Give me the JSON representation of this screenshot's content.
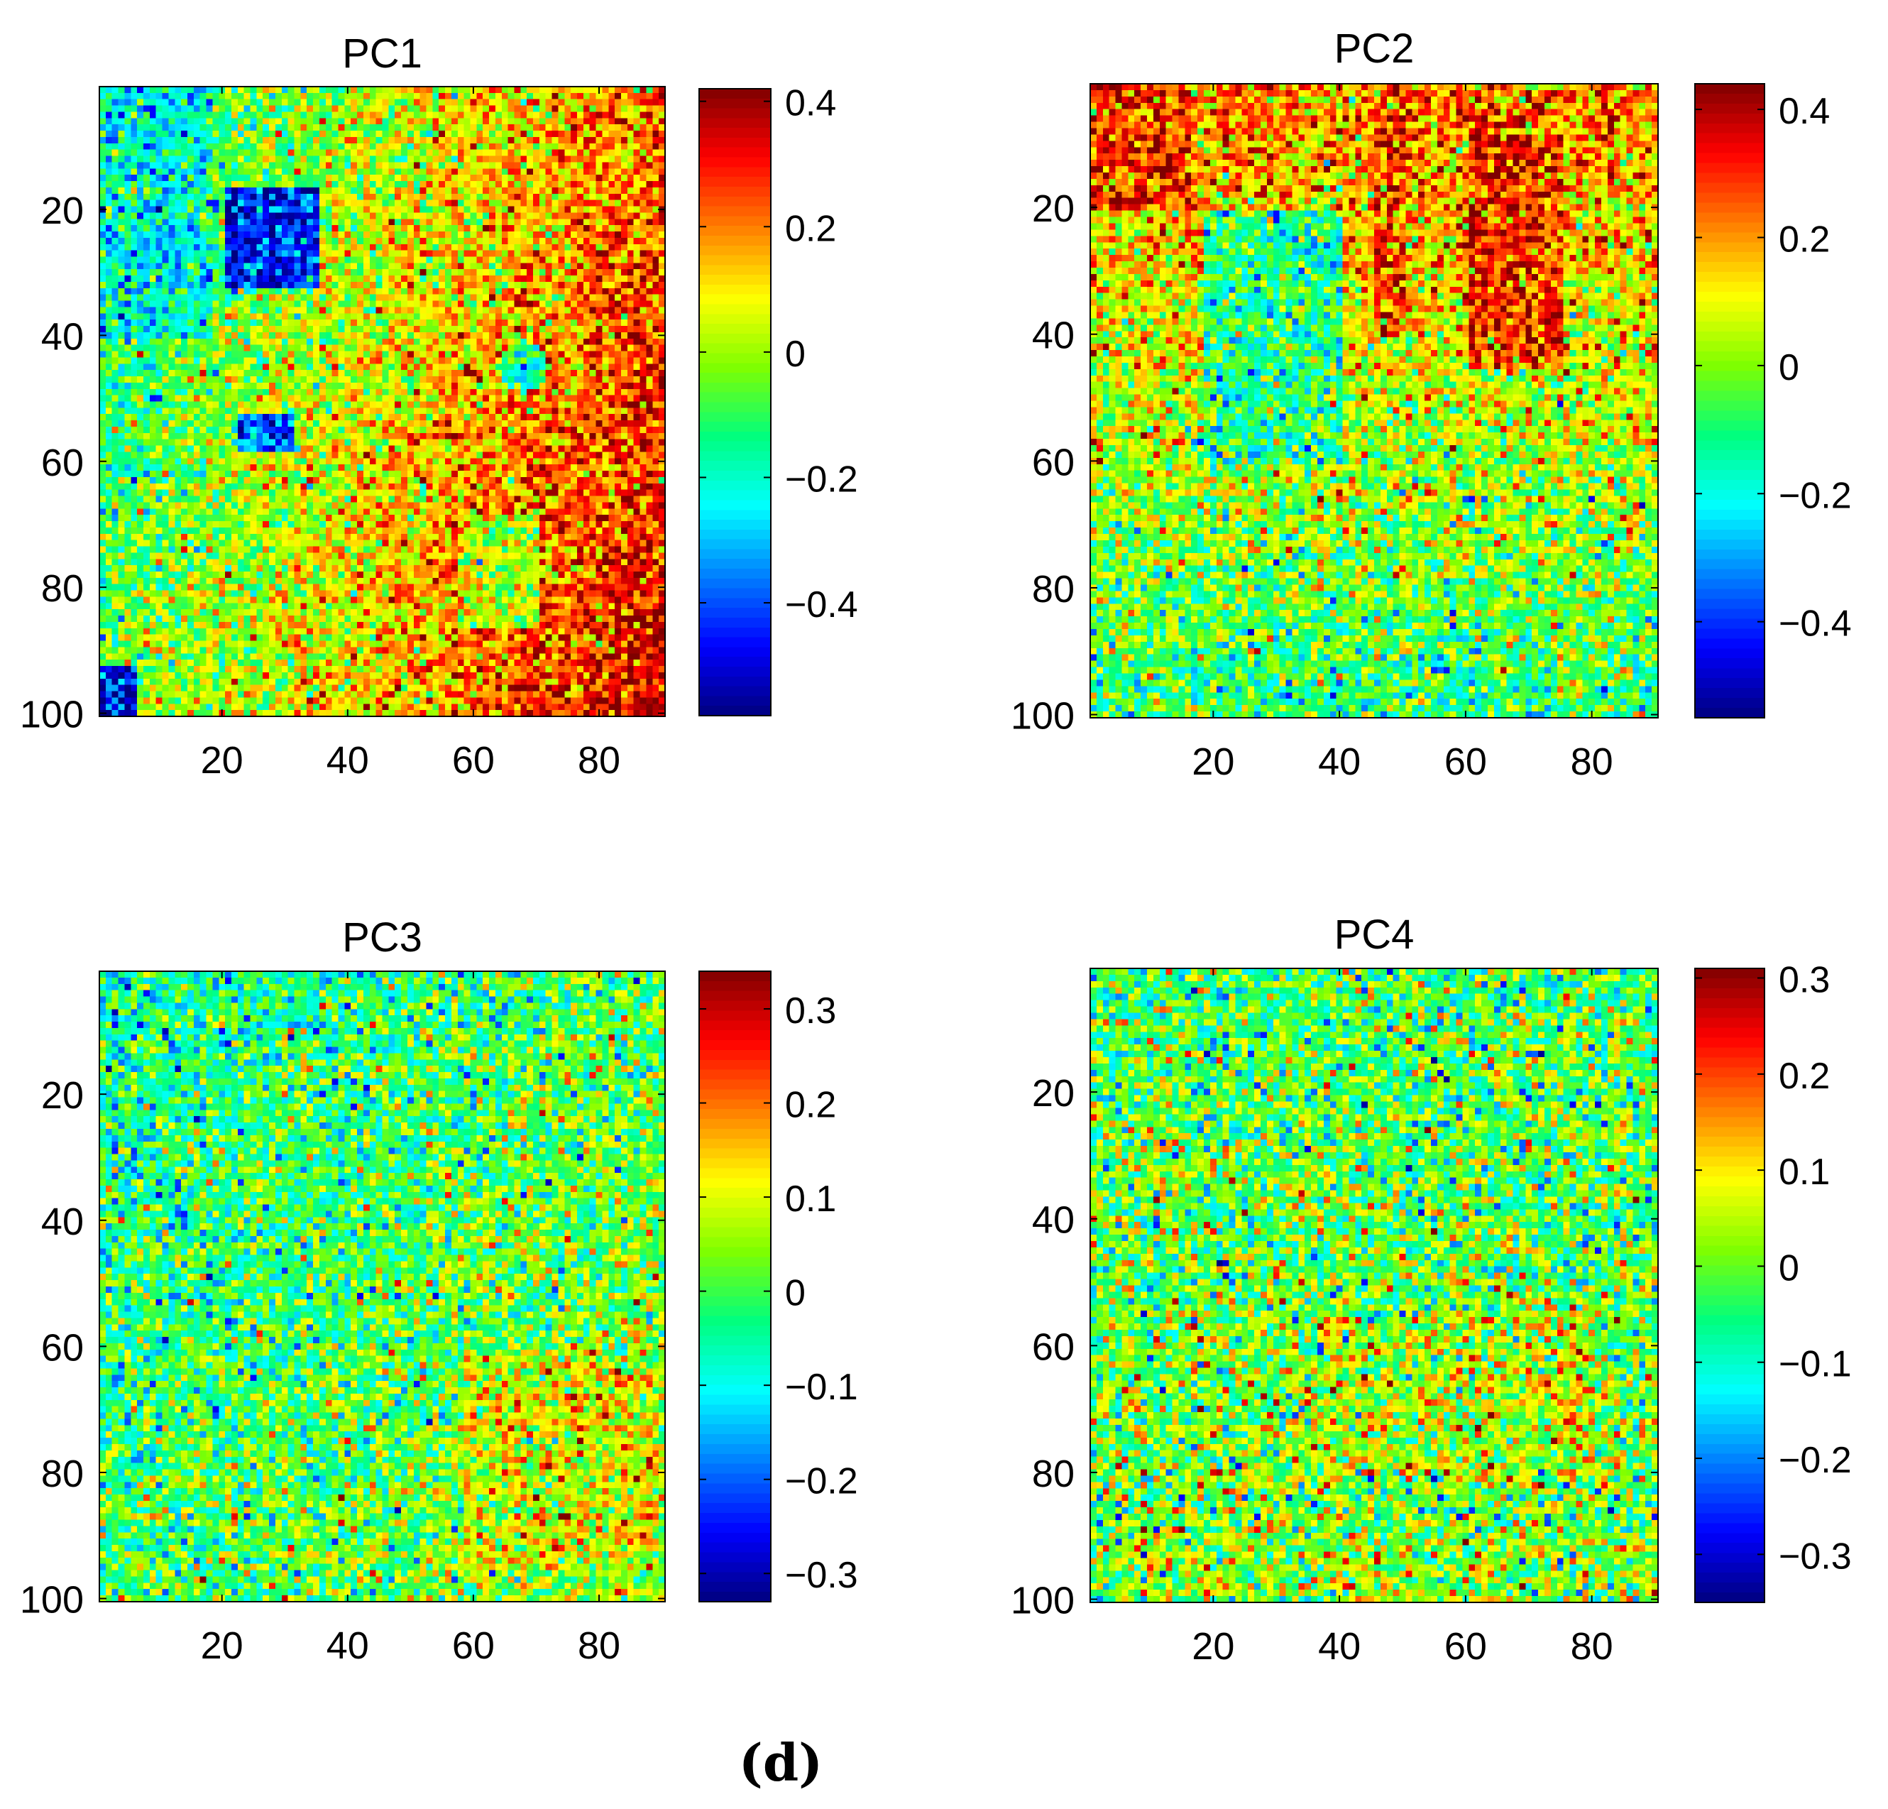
{
  "figure": {
    "caption": "(d)"
  },
  "colors": {
    "jet": [
      "#00007f",
      "#0000ff",
      "#007fff",
      "#00ffff",
      "#00ff7f",
      "#7fff00",
      "#ffff00",
      "#ff7f00",
      "#ff0000",
      "#7f0000"
    ],
    "axis": "#000000",
    "background": "#ffffff"
  },
  "chart_data": [
    {
      "type": "heatmap",
      "title": "PC1",
      "rows": 100,
      "cols": 90,
      "xlim": [
        0.5,
        90.5
      ],
      "ylim": [
        0.5,
        100.5
      ],
      "x_ticks": [
        "20",
        "40",
        "60",
        "80"
      ],
      "x_tick_values": [
        20,
        40,
        60,
        80
      ],
      "y_ticks": [
        "20",
        "40",
        "60",
        "80",
        "100"
      ],
      "y_tick_values": [
        20,
        40,
        60,
        80,
        100
      ],
      "clim": [
        -0.58,
        0.42
      ],
      "colorbar_ticks": [
        "0.4",
        "0.2",
        "0",
        "−0.2",
        "−0.4"
      ],
      "colorbar_tick_values": [
        0.4,
        0.2,
        0,
        -0.2,
        -0.4
      ],
      "pattern": {
        "noise": 0.12,
        "base": "-0.18 + 0.45*(x/90)*0.9 + 0.12*(y/100)",
        "features": [
          {
            "kind": "rect",
            "x": [
              20,
              35
            ],
            "y": [
              16,
              32
            ],
            "value": -0.46
          },
          {
            "kind": "rect",
            "x": [
              22,
              31
            ],
            "y": [
              52,
              58
            ],
            "value": -0.38
          },
          {
            "kind": "circle",
            "cx": 67,
            "cy": 44,
            "r": 4,
            "value": -0.18
          },
          {
            "kind": "rect",
            "x": [
              57,
              70
            ],
            "y": [
              68,
              86
            ],
            "value": 0.02
          },
          {
            "kind": "rect",
            "x": [
              0,
              6
            ],
            "y": [
              92,
              100
            ],
            "value": -0.48
          },
          {
            "kind": "rect",
            "x": [
              0,
              18
            ],
            "y": [
              0,
              40
            ],
            "value": -0.22
          }
        ]
      }
    },
    {
      "type": "heatmap",
      "title": "PC2",
      "rows": 100,
      "cols": 90,
      "xlim": [
        0.5,
        90.5
      ],
      "ylim": [
        0.5,
        100.5
      ],
      "x_ticks": [
        "20",
        "40",
        "60",
        "80"
      ],
      "x_tick_values": [
        20,
        40,
        60,
        80
      ],
      "y_ticks": [
        "20",
        "40",
        "60",
        "80",
        "100"
      ],
      "y_tick_values": [
        20,
        40,
        60,
        80,
        100
      ],
      "clim": [
        -0.55,
        0.44
      ],
      "colorbar_ticks": [
        "0.4",
        "0.2",
        "0",
        "−0.2",
        "−0.4"
      ],
      "colorbar_tick_values": [
        0.4,
        0.2,
        0,
        -0.2,
        -0.4
      ],
      "pattern": {
        "noise": 0.13,
        "base": "0.22 - 0.32*(y/100)",
        "features": [
          {
            "kind": "rect",
            "x": [
              0,
              16
            ],
            "y": [
              0,
              20
            ],
            "value": 0.3
          },
          {
            "kind": "rect",
            "x": [
              60,
              75
            ],
            "y": [
              8,
              45
            ],
            "value": 0.3
          },
          {
            "kind": "rect",
            "x": [
              45,
              50
            ],
            "y": [
              0,
              40
            ],
            "value": 0.26
          },
          {
            "kind": "rect",
            "x": [
              18,
              40
            ],
            "y": [
              20,
              60
            ],
            "value": -0.12
          }
        ]
      }
    },
    {
      "type": "heatmap",
      "title": "PC3",
      "rows": 100,
      "cols": 90,
      "xlim": [
        0.5,
        90.5
      ],
      "ylim": [
        0.5,
        100.5
      ],
      "x_ticks": [
        "20",
        "40",
        "60",
        "80"
      ],
      "x_tick_values": [
        20,
        40,
        60,
        80
      ],
      "y_ticks": [
        "20",
        "40",
        "60",
        "80",
        "100"
      ],
      "y_tick_values": [
        20,
        40,
        60,
        80,
        100
      ],
      "clim": [
        -0.33,
        0.34
      ],
      "colorbar_ticks": [
        "0.3",
        "0.2",
        "0.1",
        "0",
        "−0.1",
        "−0.2",
        "−0.3"
      ],
      "colorbar_tick_values": [
        0.3,
        0.2,
        0.1,
        0,
        -0.1,
        -0.2,
        -0.3
      ],
      "pattern": {
        "noise": 0.09,
        "base": "-0.06 + 0.07*(x/90) + 0.05*(y/100)",
        "features": [
          {
            "kind": "rect",
            "x": [
              58,
              90
            ],
            "y": [
              60,
              95
            ],
            "value": 0.1
          }
        ]
      }
    },
    {
      "type": "heatmap",
      "title": "PC4",
      "rows": 100,
      "cols": 90,
      "xlim": [
        0.5,
        90.5
      ],
      "ylim": [
        0.5,
        100.5
      ],
      "x_ticks": [
        "20",
        "40",
        "60",
        "80"
      ],
      "x_tick_values": [
        20,
        40,
        60,
        80
      ],
      "y_ticks": [
        "20",
        "40",
        "60",
        "80",
        "100"
      ],
      "y_tick_values": [
        20,
        40,
        60,
        80,
        100
      ],
      "clim": [
        -0.35,
        0.31
      ],
      "colorbar_ticks": [
        "0.3",
        "0.2",
        "0.1",
        "0",
        "−0.1",
        "−0.2",
        "−0.3"
      ],
      "colorbar_tick_values": [
        0.3,
        0.2,
        0.1,
        0,
        -0.1,
        -0.2,
        -0.3
      ],
      "pattern": {
        "noise": 0.1,
        "base": "-0.03 + 0.05*(y/100)",
        "features": [
          {
            "kind": "rect",
            "x": [
              35,
              80
            ],
            "y": [
              55,
              80
            ],
            "value": 0.05
          }
        ]
      }
    }
  ]
}
